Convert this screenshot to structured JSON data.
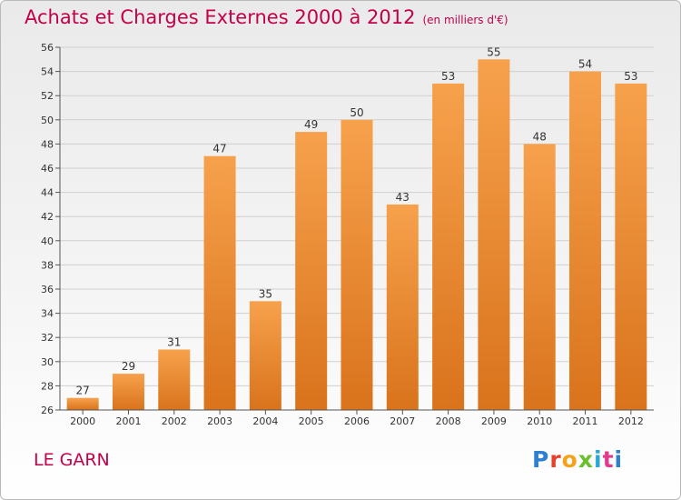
{
  "header": {
    "title": "Achats et Charges Externes 2000 à 2012",
    "subtitle": "(en milliers d'€)"
  },
  "footer": {
    "place": "LE GARN",
    "brand": "Proxiti",
    "brand_letters": [
      "P",
      "r",
      "o",
      "x",
      "i",
      "t",
      "i"
    ]
  },
  "colors": {
    "title": "#c3004a",
    "bar_light": "#f7a14c",
    "bar_dark": "#d9731c",
    "grid": "#cfcfcf"
  },
  "chart_data": {
    "type": "bar",
    "title": "Achats et Charges Externes 2000 à 2012",
    "subtitle": "(en milliers d'€)",
    "xlabel": "",
    "ylabel": "",
    "categories": [
      "2000",
      "2001",
      "2002",
      "2003",
      "2004",
      "2005",
      "2006",
      "2007",
      "2008",
      "2009",
      "2010",
      "2011",
      "2012"
    ],
    "values": [
      27,
      29,
      31,
      47,
      35,
      49,
      50,
      43,
      53,
      55,
      48,
      54,
      53
    ],
    "ylim": [
      26,
      56
    ],
    "yticks": [
      26,
      28,
      30,
      32,
      34,
      36,
      38,
      40,
      42,
      44,
      46,
      48,
      50,
      52,
      54,
      56
    ],
    "grid": true,
    "legend": "none"
  }
}
